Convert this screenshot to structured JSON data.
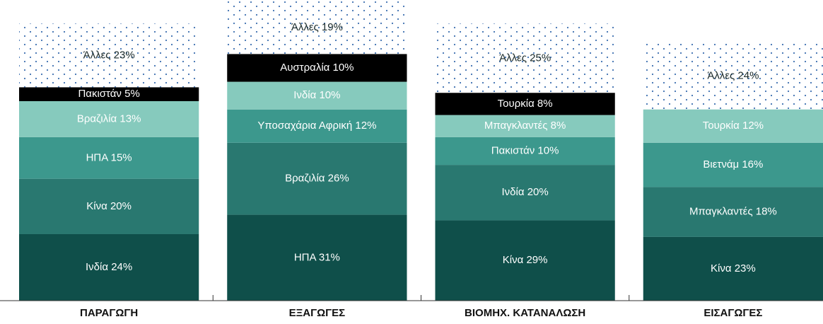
{
  "chart_data": {
    "type": "bar",
    "columns": [
      {
        "name": "ΠΑΡΑΓΩΓΗ",
        "segments": [
          {
            "label": "Ινδία 24%",
            "value": 24,
            "color": "#0f4f4a"
          },
          {
            "label": "Κίνα 20%",
            "value": 20,
            "color": "#297870"
          },
          {
            "label": "ΗΠΑ 15%",
            "value": 15,
            "color": "#3c988d"
          },
          {
            "label": "Βραζιλία 13%",
            "value": 13,
            "color": "#86cabd"
          },
          {
            "label": "Πακιστάν 5%",
            "value": 5,
            "color": "#000000"
          }
        ],
        "others": {
          "label": "Άλλες 23%",
          "value": 23
        }
      },
      {
        "name": "ΕΞΑΓΩΓΕΣ",
        "segments": [
          {
            "label": "ΗΠΑ  31%",
            "value": 31,
            "color": "#0f4f4a"
          },
          {
            "label": "Βραζιλία 26%",
            "value": 26,
            "color": "#297870"
          },
          {
            "label": "Υποσαχάρια Αφρική 12%",
            "value": 12,
            "color": "#3c988d"
          },
          {
            "label": "Ινδία 10%",
            "value": 10,
            "color": "#86cabd"
          },
          {
            "label": "Αυστραλία 10%",
            "value": 10,
            "color": "#000000"
          }
        ],
        "others": {
          "label": "Άλλες 19%",
          "value": 19
        }
      },
      {
        "name": "ΒΙΟΜΗΧ. ΚΑΤΑΝΑΛΩΣΗ",
        "segments": [
          {
            "label": "Κίνα 29%",
            "value": 29,
            "color": "#0f4f4a"
          },
          {
            "label": "Ινδία  20%",
            "value": 20,
            "color": "#297870"
          },
          {
            "label": "Πακιστάν 10%",
            "value": 10,
            "color": "#3c988d"
          },
          {
            "label": "Μπαγκλαντές  8%",
            "value": 8,
            "color": "#86cabd"
          },
          {
            "label": "Τουρκία 8%",
            "value": 8,
            "color": "#000000"
          }
        ],
        "others": {
          "label": "Άλλες  25%",
          "value": 25
        }
      },
      {
        "name": "ΕΙΣΑΓΩΓΕΣ",
        "segments": [
          {
            "label": "Κίνα 23%",
            "value": 23,
            "color": "#0f4f4a"
          },
          {
            "label": "Μπαγκλαντές  18%",
            "value": 18,
            "color": "#297870"
          },
          {
            "label": "Βιετνάμ 16%",
            "value": 16,
            "color": "#3c988d"
          },
          {
            "label": "Τουρκία 12%",
            "value": 12,
            "color": "#86cabd"
          }
        ],
        "others": {
          "label": "Άλλες  24%",
          "value": 24
        }
      }
    ]
  }
}
